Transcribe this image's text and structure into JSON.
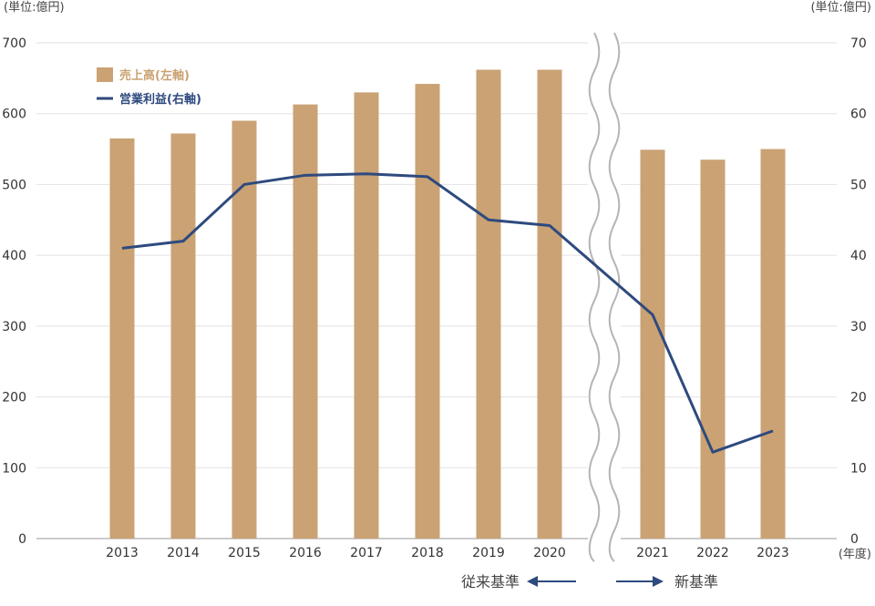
{
  "chart_data": {
    "type": "bar",
    "unit_left": "(単位:億円)",
    "unit_right": "(単位:億円)",
    "x_unit": "(年度)",
    "categories": [
      "2013",
      "2014",
      "2015",
      "2016",
      "2017",
      "2018",
      "2019",
      "2020",
      "2021",
      "2022",
      "2023"
    ],
    "y_left_ticks": [
      "0",
      "100",
      "200",
      "300",
      "400",
      "500",
      "600",
      "700"
    ],
    "y_right_ticks": [
      "0",
      "10",
      "20",
      "30",
      "40",
      "50",
      "60",
      "70"
    ],
    "ylim_left": [
      0,
      700
    ],
    "ylim_right": [
      0,
      70
    ],
    "series": [
      {
        "name": "売上高(左軸)",
        "kind": "bar",
        "axis": "left",
        "color": "#caa274",
        "values": [
          565,
          572,
          590,
          613,
          630,
          642,
          662,
          662,
          549,
          535,
          550
        ]
      },
      {
        "name": "営業利益(右軸)",
        "kind": "line",
        "axis": "right",
        "color": "#2e4a7e",
        "values": [
          41,
          42,
          50,
          51.3,
          51.5,
          51.1,
          45,
          44.2,
          31.6,
          12.2,
          15.2
        ]
      }
    ],
    "legend_position": "top-left",
    "grid": true,
    "axis_break": "between 2020 and 2021",
    "standards": {
      "old": "従来基準",
      "new": "新基準"
    }
  }
}
